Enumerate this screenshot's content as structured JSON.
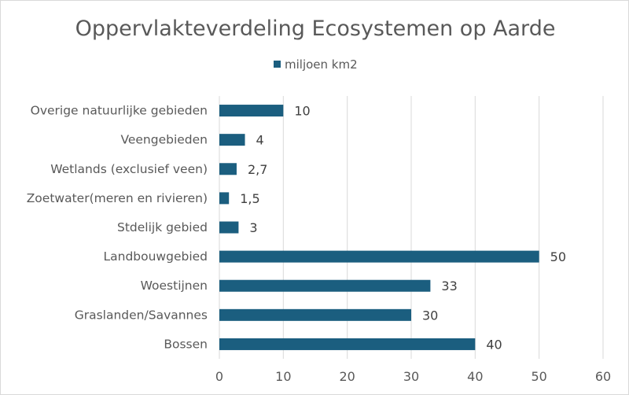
{
  "chart_data": {
    "type": "bar",
    "orientation": "horizontal",
    "title": "Oppervlakteverdeling Ecosystemen op Aarde",
    "categories": [
      "Overige natuurlijke gebieden",
      "Veengebieden",
      "Wetlands (exclusief veen)",
      "Zoetwater(meren en rivieren)",
      "Stdelijk gebied",
      "Landbouwgebied",
      "Woestijnen",
      "Graslanden/Savannes",
      "Bossen"
    ],
    "series": [
      {
        "name": "miljoen km2",
        "values": [
          10,
          4,
          2.7,
          1.5,
          3,
          50,
          33,
          30,
          40
        ],
        "data_labels": [
          "10",
          "4",
          "2,7",
          "1,5",
          "3",
          "50",
          "33",
          "30",
          "40"
        ],
        "color": "#1b5e7f"
      }
    ],
    "xlim": [
      0,
      60
    ],
    "xticks": [
      "0",
      "10",
      "20",
      "30",
      "40",
      "50",
      "60"
    ],
    "xlabel": "",
    "ylabel": "",
    "grid": "vertical",
    "legend_position": "top"
  }
}
